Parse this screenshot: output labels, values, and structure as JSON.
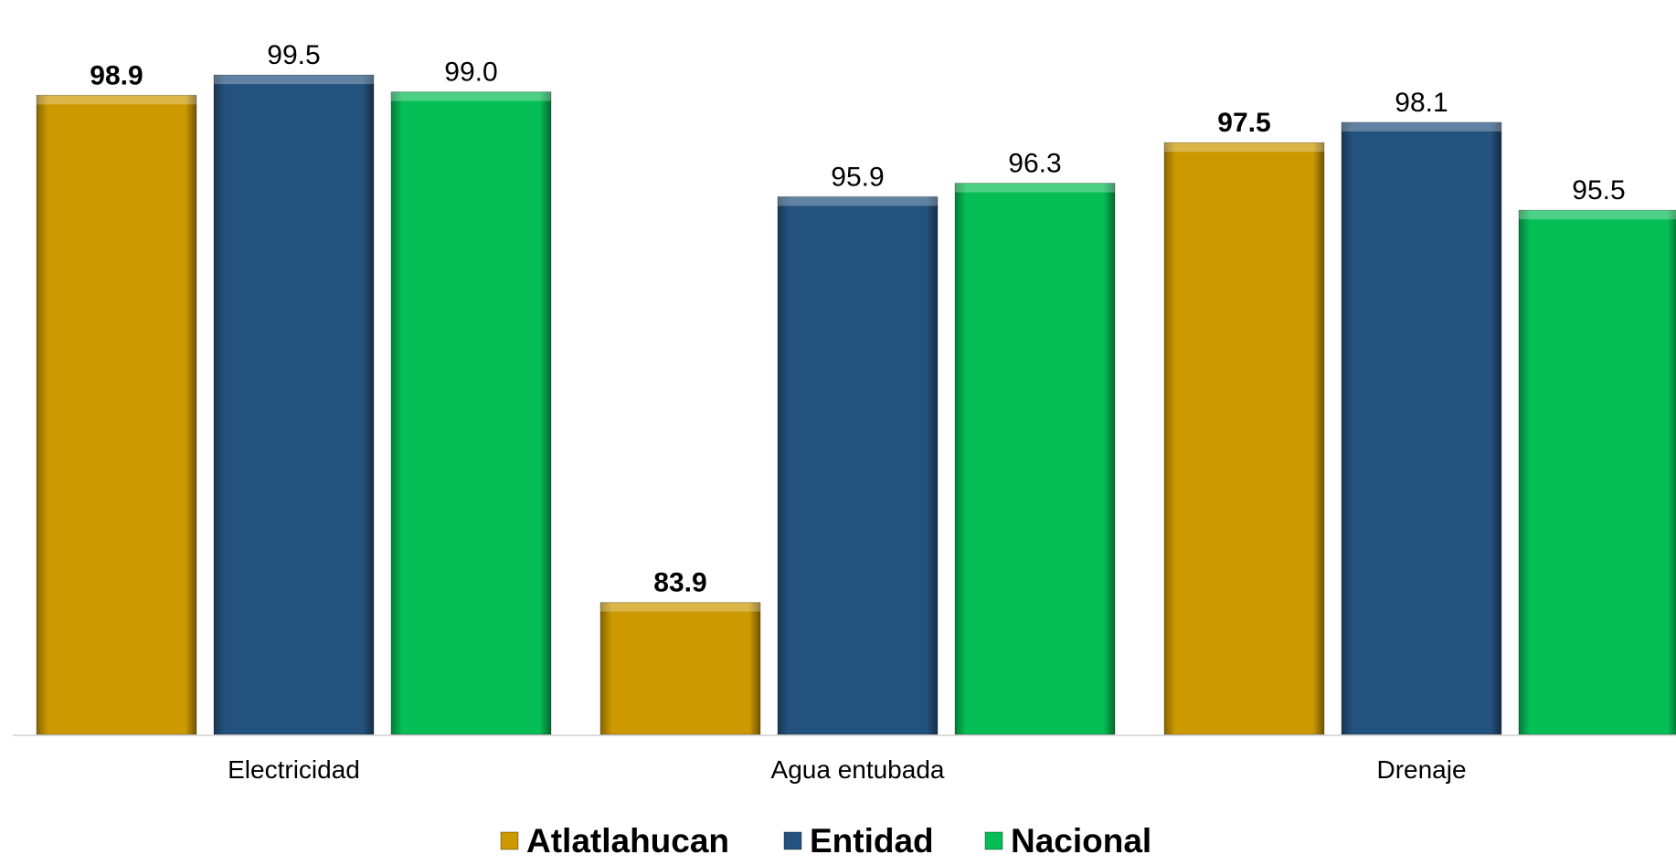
{
  "chart_data": {
    "type": "bar",
    "title": "",
    "xlabel": "",
    "ylabel": "",
    "categories": [
      "Electricidad",
      "Agua entubada",
      "Drenaje"
    ],
    "ylim": [
      80,
      100.8
    ],
    "grid": false,
    "legend_position": "bottom",
    "series": [
      {
        "name": "Atlatlahucan",
        "values": [
          98.9,
          83.9,
          97.5
        ],
        "labels": [
          "98.9",
          "83.9",
          "97.5"
        ],
        "color": "#CC9900",
        "bold_labels": true
      },
      {
        "name": "Entidad",
        "values": [
          99.5,
          95.9,
          98.1
        ],
        "labels": [
          "99.5",
          "95.9",
          "98.1"
        ],
        "color": "#24527E",
        "bold_labels": false
      },
      {
        "name": "Nacional",
        "values": [
          99.0,
          96.3,
          95.5
        ],
        "labels": [
          "99.0",
          "96.3",
          "95.5"
        ],
        "color": "#06BE56",
        "bold_labels": false
      }
    ]
  }
}
